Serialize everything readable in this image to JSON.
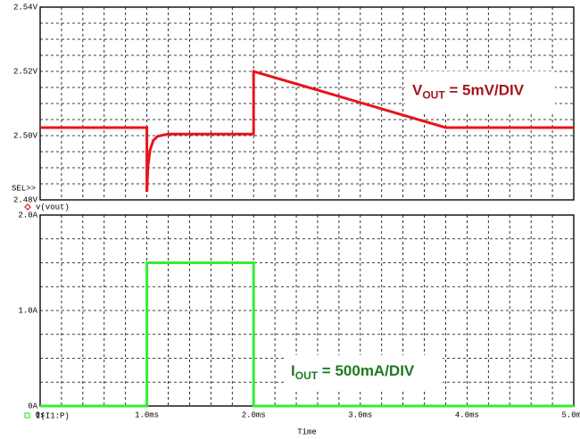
{
  "chart_data": [
    {
      "type": "line",
      "ylim": [
        2.48,
        2.54
      ],
      "yticks": [
        {
          "value": 2.48,
          "label": "2.48V"
        },
        {
          "value": 2.5,
          "label": "2.50V"
        },
        {
          "value": 2.52,
          "label": "2.52V"
        },
        {
          "value": 2.54,
          "label": "2.54V"
        }
      ],
      "xlim": [
        0,
        5
      ],
      "grid": true,
      "minor_y_divisions": 4,
      "minor_x_divisions": 5,
      "marker_label": "SEL>>",
      "series": [
        {
          "name": "v(vout)",
          "color": "#e8141c",
          "x": [
            0,
            1.0,
            1.0,
            1.01,
            1.03,
            1.06,
            1.1,
            1.2,
            2.0,
            2.0,
            3.8,
            5.0
          ],
          "values": [
            2.5025,
            2.5025,
            2.4825,
            2.4905,
            2.4955,
            2.4985,
            2.4998,
            2.5005,
            2.5005,
            2.52,
            2.5025,
            2.5025
          ]
        }
      ],
      "annotation": {
        "main": "V",
        "sub": "OUT",
        "rest": " = 5mV/DIV",
        "color": "#a4151b"
      }
    },
    {
      "type": "line",
      "ylim": [
        0,
        2.0
      ],
      "yticks": [
        {
          "value": 0,
          "label": "0A"
        },
        {
          "value": 1.0,
          "label": "1.0A"
        },
        {
          "value": 2.0,
          "label": "2.0A"
        }
      ],
      "xlim": [
        0,
        5
      ],
      "xticks": [
        {
          "value": 0,
          "label": "0s"
        },
        {
          "value": 1,
          "label": "1.0ms"
        },
        {
          "value": 2,
          "label": "2.0ms"
        },
        {
          "value": 3,
          "label": "3.0ms"
        },
        {
          "value": 4,
          "label": "4.0ms"
        },
        {
          "value": 5,
          "label": "5.0ms"
        }
      ],
      "xlabel": "Time",
      "grid": true,
      "minor_y_divisions": 4,
      "minor_x_divisions": 5,
      "series": [
        {
          "name": "I(I1:P)",
          "color": "#33ee33",
          "x": [
            0,
            1,
            1,
            2,
            2,
            5
          ],
          "values": [
            0,
            0,
            1.5,
            1.5,
            0,
            0
          ]
        }
      ],
      "annotation": {
        "main": "I",
        "sub": "OUT",
        "rest": " = 500mA/DIV",
        "color": "#1e7a1e"
      }
    }
  ]
}
